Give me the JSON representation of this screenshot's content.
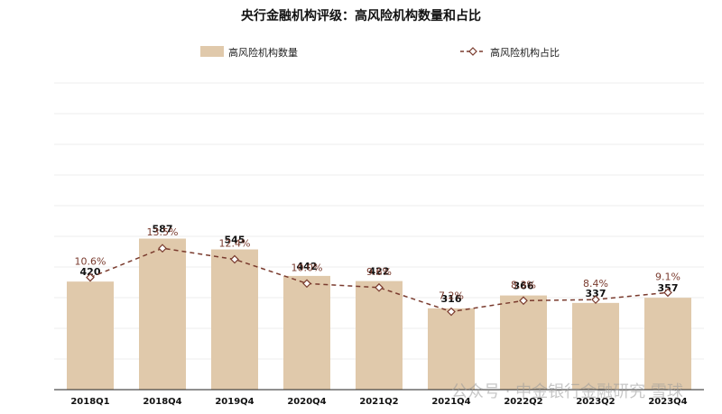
{
  "chart_data": {
    "type": "bar",
    "title": "央行金融机构评级：高风险机构数量和占比",
    "categories": [
      "2018Q1",
      "2018Q4",
      "2019Q4",
      "2020Q4",
      "2021Q2",
      "2021Q4",
      "2022Q2",
      "2023Q2",
      "2023Q4"
    ],
    "series": [
      {
        "name": "高风险机构数量",
        "type": "bar",
        "values": [
          420,
          587,
          545,
          442,
          422,
          316,
          366,
          337,
          357
        ],
        "color": "#e0c9ab"
      },
      {
        "name": "高风险机构占比",
        "type": "line",
        "values": [
          10.6,
          13.5,
          12.4,
          10.0,
          9.6,
          7.2,
          8.3,
          8.4,
          9.1
        ],
        "color": "#7a3b2e"
      }
    ],
    "value_labels": [
      "420",
      "587",
      "545",
      "442",
      "422",
      "316",
      "366",
      "337",
      "357"
    ],
    "percent_labels": [
      "10.6%",
      "13.5%",
      "12.4%",
      "10.0%",
      "9.6%",
      "7.2%",
      "8.3%",
      "8.4%",
      "9.1%"
    ],
    "legend": [
      "高风险机构数量",
      "高风险机构占比"
    ],
    "legend_position": "top",
    "grid": true
  },
  "watermark": "公众号 · 中金银行金融研究 雪球"
}
